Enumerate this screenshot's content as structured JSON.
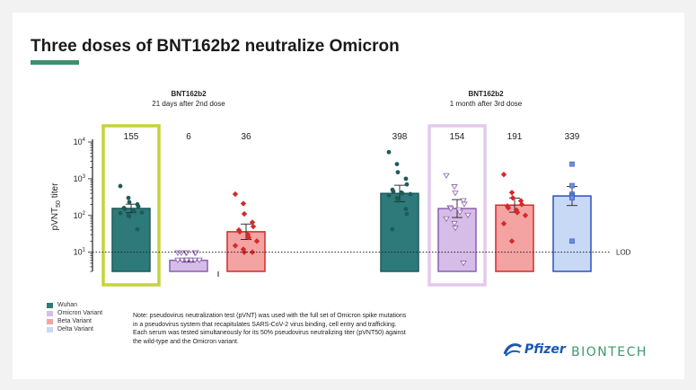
{
  "title": "Three doses of BNT162b2 neutralize Omicron",
  "colors": {
    "accent": "#3d8f6e"
  },
  "chart_data": {
    "type": "bar",
    "yscale": "log",
    "ylim": [
      3,
      10000
    ],
    "ylabel": "pVNT50 titer",
    "yticks": [
      {
        "value": 10,
        "base": "10",
        "exp": "1"
      },
      {
        "value": 100,
        "base": "10",
        "exp": "2"
      },
      {
        "value": 1000,
        "base": "10",
        "exp": "3"
      },
      {
        "value": 10000,
        "base": "10",
        "exp": "4"
      }
    ],
    "reference_line": {
      "value": 10,
      "label": "LOD",
      "style": "dotted"
    },
    "groups": [
      {
        "title": "BNT162b2",
        "subtitle": "21 days after 2nd dose"
      },
      {
        "title": "BNT162b2",
        "subtitle": "1 month after 3rd dose"
      }
    ],
    "series": [
      {
        "name": "Wuhan",
        "color": "#2e7a7a",
        "marker": "circle",
        "group": 0,
        "value": 155,
        "label": "155",
        "highlighted": true,
        "points": [
          630,
          300,
          230,
          200,
          175,
          160,
          150,
          140,
          130,
          120,
          115,
          100,
          95,
          42
        ]
      },
      {
        "name": "Omicron Variant",
        "color": "#d6bde8",
        "marker": "triangle-down",
        "group": 0,
        "value": 6,
        "label": "6",
        "highlighted": false,
        "points": [
          9.5,
          9.5,
          9.5,
          9.5,
          9.5,
          9.5,
          6,
          6,
          6,
          6,
          6,
          6,
          6,
          6
        ]
      },
      {
        "name": "Beta Variant",
        "color": "#f4a3a3",
        "marker": "diamond",
        "group": 0,
        "value": 36,
        "label": "36",
        "highlighted": false,
        "points": [
          380,
          210,
          110,
          65,
          50,
          40,
          36,
          30,
          25,
          20,
          15,
          12,
          10,
          10
        ]
      },
      {
        "name": "Wuhan",
        "color": "#2e7a7a",
        "marker": "circle",
        "group": 1,
        "value": 398,
        "label": "398",
        "highlighted": false,
        "points": [
          5300,
          2500,
          1500,
          1000,
          700,
          500,
          450,
          420,
          400,
          380,
          350,
          300,
          250,
          150,
          110,
          42
        ]
      },
      {
        "name": "Omicron Variant",
        "color": "#d6bde8",
        "marker": "triangle-down",
        "group": 1,
        "value": 154,
        "label": "154",
        "highlighted": true,
        "points": [
          1200,
          600,
          400,
          250,
          200,
          160,
          150,
          140,
          120,
          100,
          80,
          60,
          45,
          5
        ]
      },
      {
        "name": "Beta Variant",
        "color": "#f4a3a3",
        "marker": "diamond",
        "group": 1,
        "value": 191,
        "label": "191",
        "highlighted": false,
        "points": [
          1300,
          420,
          300,
          250,
          200,
          180,
          160,
          140,
          120,
          100,
          60,
          20
        ]
      },
      {
        "name": "Delta Variant",
        "color": "#c7d9f5",
        "marker": "square",
        "group": 1,
        "value": 339,
        "label": "339",
        "highlighted": false,
        "points": [
          2500,
          650,
          380,
          350,
          330,
          300,
          20
        ]
      }
    ],
    "legend": [
      {
        "name": "Wuhan",
        "color": "#2e7a7a"
      },
      {
        "name": "Omicron Variant",
        "color": "#d6bde8"
      },
      {
        "name": "Beta Variant",
        "color": "#f4a3a3"
      },
      {
        "name": "Delta Variant",
        "color": "#c7d9f5"
      }
    ]
  },
  "note": "Note: pseudovirus neutralization test (pVNT) was used with the full set of Omicron spike mutations in a pseudovirus system that recapitulates SARS-CoV-2 virus binding, cell entry and trafficking. Each serum was tested simultaneously for its 50% pseudovirus neutralizing titer (pVNT50) against the wild-type and the Omicron variant.",
  "logos": {
    "pfizer": "Pfizer",
    "biontech": "BIONTECH"
  }
}
